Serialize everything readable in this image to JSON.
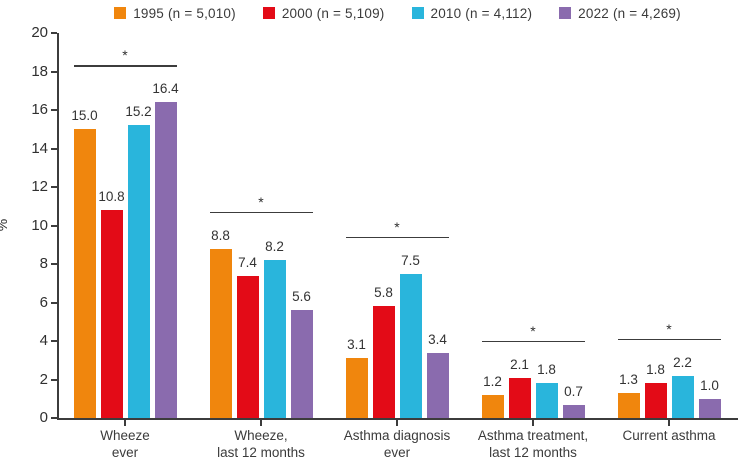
{
  "legend": {
    "items": [
      {
        "label": "1995 (n = 5,010)",
        "color": "#F0860D"
      },
      {
        "label": "2000 (n = 5,109)",
        "color": "#E30B17"
      },
      {
        "label": "2010 (n = 4,112)",
        "color": "#29B5DC"
      },
      {
        "label": "2022 (n = 4,269)",
        "color": "#8A6BAE"
      }
    ]
  },
  "chart_data": {
    "type": "bar",
    "title": "",
    "ylabel": "%",
    "xlabel": "",
    "ylim": [
      0,
      20
    ],
    "ytick_step": 2,
    "yticks": [
      0,
      2,
      4,
      6,
      8,
      10,
      12,
      14,
      16,
      18,
      20
    ],
    "grid": false,
    "legend_position": "top",
    "categories": [
      "Wheeze\never",
      "Wheeze,\nlast 12 months",
      "Asthma diagnosis\never",
      "Asthma treatment,\nlast 12 months",
      "Current asthma"
    ],
    "series": [
      {
        "name": "1995 (n = 5,010)",
        "color": "#F0860D",
        "values": [
          15.0,
          8.8,
          3.1,
          1.2,
          1.3
        ],
        "value_labels": [
          "15.0",
          "8.8",
          "3.1",
          "1.2",
          "1.3"
        ]
      },
      {
        "name": "2000 (n = 5,109)",
        "color": "#E30B17",
        "values": [
          10.8,
          7.4,
          5.8,
          2.1,
          1.8
        ],
        "value_labels": [
          "10.8",
          "7.4",
          "5.8",
          "2.1",
          "1.8"
        ]
      },
      {
        "name": "2010 (n = 4,112)",
        "color": "#29B5DC",
        "values": [
          15.2,
          8.2,
          7.5,
          1.8,
          2.2
        ],
        "value_labels": [
          "15.2",
          "8.2",
          "7.5",
          "1.8",
          "2.2"
        ]
      },
      {
        "name": "2022 (n = 4,269)",
        "color": "#8A6BAE",
        "values": [
          16.4,
          5.6,
          3.4,
          0.7,
          1.0
        ],
        "value_labels": [
          "16.4",
          "5.6",
          "3.4",
          "0.7",
          "1.0"
        ]
      }
    ],
    "significance_markers": [
      "*",
      "*",
      "*",
      "*",
      "*"
    ]
  }
}
